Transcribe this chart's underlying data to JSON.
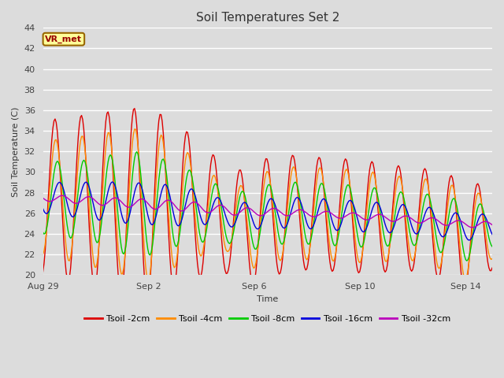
{
  "title": "Soil Temperatures Set 2",
  "xlabel": "Time",
  "ylabel": "Soil Temperature (C)",
  "ylim": [
    20,
    44
  ],
  "yticks": [
    20,
    22,
    24,
    26,
    28,
    30,
    32,
    34,
    36,
    38,
    40,
    42,
    44
  ],
  "bg_color": "#dcdcdc",
  "plot_bg_color": "#dcdcdc",
  "grid_color": "#ffffff",
  "series": [
    {
      "label": "Tsoil -2cm",
      "color": "#dd0000"
    },
    {
      "label": "Tsoil -4cm",
      "color": "#ff8c00"
    },
    {
      "label": "Tsoil -8cm",
      "color": "#00cc00"
    },
    {
      "label": "Tsoil -16cm",
      "color": "#0000dd"
    },
    {
      "label": "Tsoil -32cm",
      "color": "#bb00bb"
    }
  ],
  "annotation": "VR_met",
  "annotation_color": "#990000",
  "annotation_bg": "#ffff99",
  "annotation_border": "#996600",
  "n_days": 17.0,
  "xtick_vals": [
    0,
    4,
    8,
    12,
    16
  ],
  "xtick_labels": [
    "Aug 29",
    "Sep 2",
    "Sep 6",
    "Sep 10",
    "Sep 14"
  ]
}
